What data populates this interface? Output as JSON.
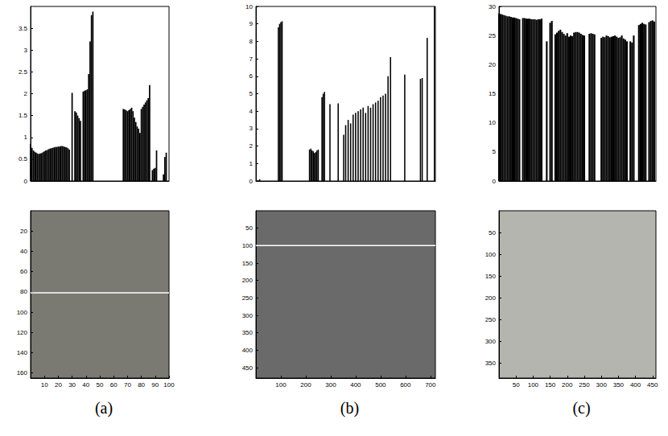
{
  "chart_data": [
    {
      "type": "bar",
      "color": "#000000",
      "tick_labels": "y",
      "grid": false,
      "xlim": [
        0,
        100
      ],
      "ylim": [
        0,
        4
      ],
      "yticks": [
        0,
        0.5,
        1,
        1.5,
        2,
        2.5,
        3,
        3.5
      ],
      "x": [
        0,
        1,
        2,
        3,
        4,
        5,
        6,
        7,
        8,
        9,
        10,
        11,
        12,
        13,
        14,
        15,
        16,
        17,
        18,
        19,
        20,
        21,
        22,
        23,
        24,
        25,
        26,
        27,
        28,
        30,
        32,
        33,
        34,
        35,
        36,
        38,
        39,
        40,
        41,
        42,
        43,
        44,
        45,
        67,
        68,
        69,
        70,
        71,
        72,
        73,
        74,
        75,
        76,
        77,
        78,
        79,
        80,
        81,
        82,
        83,
        84,
        85,
        86,
        88,
        89,
        90,
        91,
        96,
        97,
        98
      ],
      "values": [
        0.85,
        0.76,
        0.7,
        0.67,
        0.65,
        0.63,
        0.62,
        0.63,
        0.64,
        0.66,
        0.68,
        0.7,
        0.71,
        0.73,
        0.74,
        0.75,
        0.76,
        0.77,
        0.78,
        0.78,
        0.79,
        0.79,
        0.8,
        0.8,
        0.79,
        0.78,
        0.77,
        0.75,
        0.72,
        2.02,
        1.6,
        1.57,
        1.5,
        1.44,
        1.38,
        2.05,
        2.07,
        2.08,
        2.1,
        2.45,
        3.2,
        3.8,
        3.88,
        1.65,
        1.64,
        1.62,
        1.6,
        1.62,
        1.65,
        1.68,
        1.6,
        1.45,
        1.35,
        1.25,
        1.2,
        1.1,
        1.65,
        1.7,
        1.75,
        1.8,
        1.85,
        1.9,
        2.2,
        0.25,
        0.28,
        0.3,
        0.7,
        0.15,
        0.55,
        0.65
      ]
    },
    {
      "type": "bar",
      "color": "#000000",
      "tick_labels": "y",
      "grid": false,
      "xlim": [
        0,
        720
      ],
      "ylim": [
        0,
        10
      ],
      "yticks": [
        0,
        1,
        2,
        3,
        4,
        5,
        6,
        7,
        8,
        9,
        10
      ],
      "x": [
        8,
        15,
        90,
        95,
        100,
        105,
        215,
        220,
        225,
        230,
        235,
        240,
        245,
        250,
        265,
        270,
        275,
        297,
        330,
        352,
        360,
        370,
        380,
        390,
        400,
        410,
        420,
        430,
        440,
        450,
        460,
        470,
        480,
        490,
        500,
        510,
        520,
        530,
        540,
        597,
        660,
        667,
        687,
        716
      ],
      "values": [
        0.05,
        0.1,
        8.8,
        9.0,
        9.1,
        9.15,
        1.8,
        1.85,
        1.75,
        1.7,
        1.6,
        1.65,
        1.75,
        1.8,
        4.8,
        5.0,
        5.1,
        4.4,
        4.45,
        2.65,
        3.2,
        3.5,
        3.3,
        3.8,
        3.9,
        4.0,
        4.1,
        4.2,
        3.9,
        4.3,
        4.2,
        4.4,
        4.5,
        4.6,
        4.8,
        4.9,
        5.0,
        6.0,
        7.1,
        6.1,
        5.85,
        5.9,
        8.2,
        10
      ]
    },
    {
      "type": "bar",
      "color": "#000000",
      "tick_labels": "y",
      "grid": false,
      "xlim": [
        0,
        460
      ],
      "ylim": [
        0,
        30
      ],
      "yticks": [
        0,
        5,
        10,
        15,
        20,
        25,
        30
      ],
      "x": [
        0,
        5,
        10,
        15,
        20,
        25,
        30,
        35,
        40,
        45,
        50,
        55,
        60,
        70,
        75,
        80,
        85,
        90,
        95,
        100,
        105,
        110,
        115,
        120,
        125,
        140,
        150,
        155,
        165,
        170,
        175,
        180,
        185,
        190,
        195,
        200,
        205,
        210,
        215,
        220,
        225,
        230,
        235,
        240,
        245,
        250,
        265,
        270,
        275,
        280,
        300,
        305,
        310,
        315,
        320,
        325,
        330,
        335,
        340,
        345,
        350,
        355,
        360,
        365,
        370,
        375,
        385,
        390,
        395,
        410,
        415,
        420,
        425,
        430,
        440,
        445,
        450,
        455
      ],
      "values": [
        28.8,
        28.7,
        28.6,
        28.5,
        28.4,
        28.3,
        28.3,
        28.2,
        28.1,
        28.1,
        28.0,
        27.9,
        27.8,
        28.0,
        28.0,
        27.9,
        27.9,
        27.9,
        27.8,
        27.8,
        27.8,
        27.7,
        27.8,
        27.8,
        27.9,
        24.0,
        27.2,
        27.5,
        25.2,
        25.5,
        25.8,
        26.0,
        25.6,
        25.3,
        25.0,
        25.4,
        24.8,
        25.0,
        24.9,
        25.5,
        25.6,
        25.6,
        25.5,
        25.3,
        25.1,
        25.0,
        25.3,
        25.4,
        25.3,
        25.2,
        24.6,
        24.8,
        24.7,
        25.0,
        24.9,
        24.7,
        24.8,
        24.9,
        25.0,
        24.8,
        24.6,
        24.7,
        25.0,
        24.5,
        24.3,
        24.0,
        24.0,
        23.8,
        25.0,
        26.8,
        27.0,
        27.2,
        27.0,
        26.9,
        27.3,
        27.5,
        27.6,
        27.4
      ]
    },
    {
      "type": "image",
      "title": "(a)",
      "color": "#7a7a72",
      "grid": false,
      "xlim": [
        0,
        100
      ],
      "xticks": [
        10,
        20,
        30,
        40,
        50,
        60,
        70,
        80,
        90,
        100
      ],
      "ylim": [
        0,
        165
      ],
      "yticks": [
        20,
        40,
        60,
        80,
        100,
        120,
        140,
        160
      ],
      "scanline": 81
    },
    {
      "type": "image",
      "title": "(b)",
      "color": "#6a6a6a",
      "grid": false,
      "xlim": [
        0,
        720
      ],
      "xticks": [
        100,
        200,
        300,
        400,
        500,
        600,
        700
      ],
      "ylim": [
        0,
        480
      ],
      "yticks": [
        50,
        100,
        150,
        200,
        250,
        300,
        350,
        400,
        450
      ],
      "scanline": 100
    },
    {
      "type": "image",
      "title": "(c)",
      "color": "#b5b5b0",
      "grid": false,
      "xlim": [
        0,
        460
      ],
      "xticks": [
        50,
        100,
        150,
        200,
        250,
        300,
        350,
        400,
        450
      ],
      "ylim": [
        0,
        385
      ],
      "yticks": [
        50,
        100,
        150,
        200,
        250,
        300,
        350
      ]
    }
  ]
}
